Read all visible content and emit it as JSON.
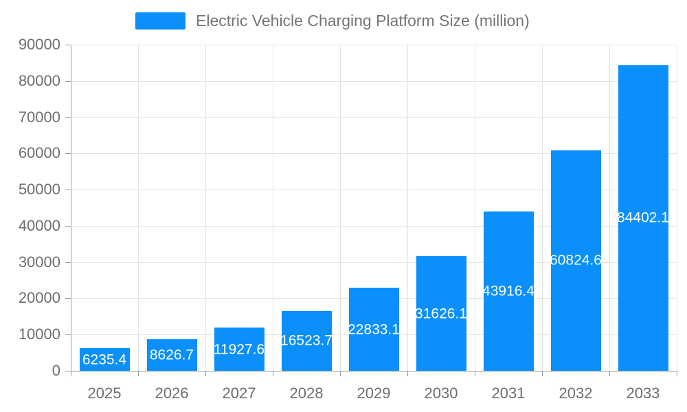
{
  "chart_data": {
    "type": "bar",
    "title": "Electric Vehicle Charging Platform Size (million)",
    "legend": {
      "label": "Electric Vehicle Charging Platform Size (million)",
      "position": "top-center"
    },
    "categories": [
      "2025",
      "2026",
      "2027",
      "2028",
      "2029",
      "2030",
      "2031",
      "2032",
      "2033"
    ],
    "series": [
      {
        "name": "Electric Vehicle Charging Platform Size (million)",
        "values": [
          6235.4,
          8626.7,
          11927.6,
          16523.7,
          22833.1,
          31626.1,
          43916.4,
          60824.6,
          84402.1
        ],
        "value_labels": [
          "6235.4",
          "8626.7",
          "11927.6",
          "16523.7",
          "22833.1",
          "31626.1",
          "43916.4",
          "60824.6",
          "84402.1"
        ]
      }
    ],
    "xlabel": "",
    "ylabel": "",
    "ylim": [
      0,
      90000
    ],
    "yticks": [
      0,
      10000,
      20000,
      30000,
      40000,
      50000,
      60000,
      70000,
      80000,
      90000
    ],
    "grid": true,
    "value_label_position": "inside-center",
    "colors": {
      "bar": "#0b90fb",
      "bar_label_text": "#ffffff",
      "grid_line": "#e3e3e3",
      "axis_line": "#999999",
      "axis_tick_text": "#6e6e6e",
      "legend_text": "#757575",
      "background": "#ffffff"
    }
  }
}
